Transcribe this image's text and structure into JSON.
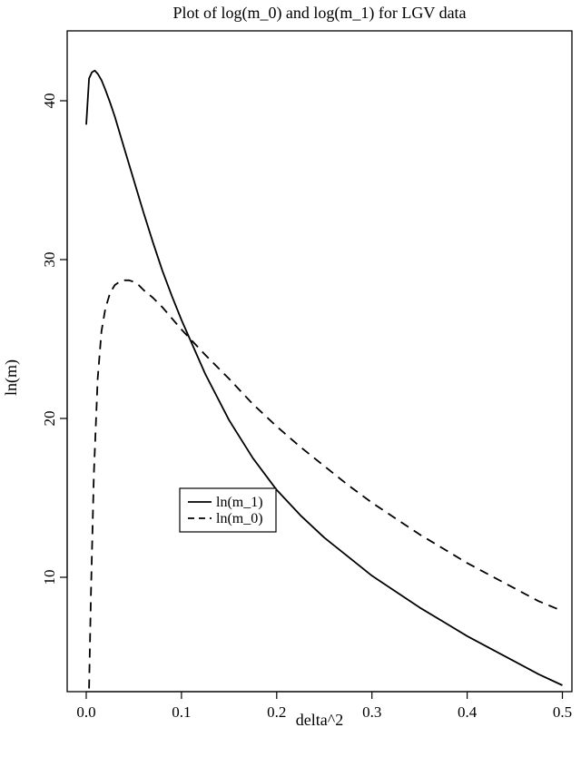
{
  "chart_data": {
    "type": "line",
    "title": "Plot of log(m_0) and log(m_1) for LGV data",
    "xlabel": "delta^2",
    "ylabel": "ln(m)",
    "xlim": [
      -0.02,
      0.51
    ],
    "ylim": [
      2.8,
      44.4
    ],
    "xticks": [
      0.0,
      0.1,
      0.2,
      0.3,
      0.4,
      0.5
    ],
    "xtick_labels": [
      "0.0",
      "0.1",
      "0.2",
      "0.3",
      "0.4",
      "0.5"
    ],
    "yticks": [
      10,
      20,
      30,
      40
    ],
    "ytick_labels": [
      "10",
      "20",
      "30",
      "40"
    ],
    "grid": false,
    "legend": {
      "position": "center-left",
      "boxed": true
    },
    "series": [
      {
        "name": "ln(m_1)",
        "style": "solid",
        "color": "#000000",
        "x": [
          0.0,
          0.003,
          0.006,
          0.009,
          0.012,
          0.016,
          0.02,
          0.025,
          0.03,
          0.04,
          0.05,
          0.06,
          0.07,
          0.08,
          0.09,
          0.1,
          0.125,
          0.15,
          0.175,
          0.2,
          0.225,
          0.25,
          0.275,
          0.3,
          0.325,
          0.35,
          0.375,
          0.4,
          0.425,
          0.45,
          0.475,
          0.5
        ],
        "y": [
          38.5,
          41.4,
          41.8,
          41.9,
          41.7,
          41.3,
          40.7,
          39.9,
          39.0,
          37.0,
          35.0,
          33.0,
          31.1,
          29.3,
          27.7,
          26.2,
          22.8,
          19.9,
          17.5,
          15.5,
          13.9,
          12.5,
          11.3,
          10.1,
          9.1,
          8.1,
          7.2,
          6.3,
          5.5,
          4.7,
          3.9,
          3.2
        ]
      },
      {
        "name": "ln(m_0)",
        "style": "dashed",
        "color": "#000000",
        "x": [
          0.003,
          0.005,
          0.008,
          0.012,
          0.016,
          0.02,
          0.025,
          0.03,
          0.035,
          0.04,
          0.045,
          0.05,
          0.055,
          0.06,
          0.07,
          0.08,
          0.09,
          0.1,
          0.125,
          0.15,
          0.175,
          0.2,
          0.225,
          0.25,
          0.275,
          0.3,
          0.325,
          0.35,
          0.375,
          0.4,
          0.425,
          0.45,
          0.475,
          0.495
        ],
        "y": [
          3.0,
          9.0,
          16.5,
          22.5,
          25.5,
          26.9,
          27.9,
          28.4,
          28.6,
          28.7,
          28.7,
          28.6,
          28.4,
          28.1,
          27.6,
          27.0,
          26.3,
          25.6,
          24.0,
          22.5,
          20.9,
          19.5,
          18.2,
          17.0,
          15.8,
          14.7,
          13.7,
          12.7,
          11.8,
          10.9,
          10.1,
          9.3,
          8.5,
          8.0
        ]
      }
    ]
  }
}
